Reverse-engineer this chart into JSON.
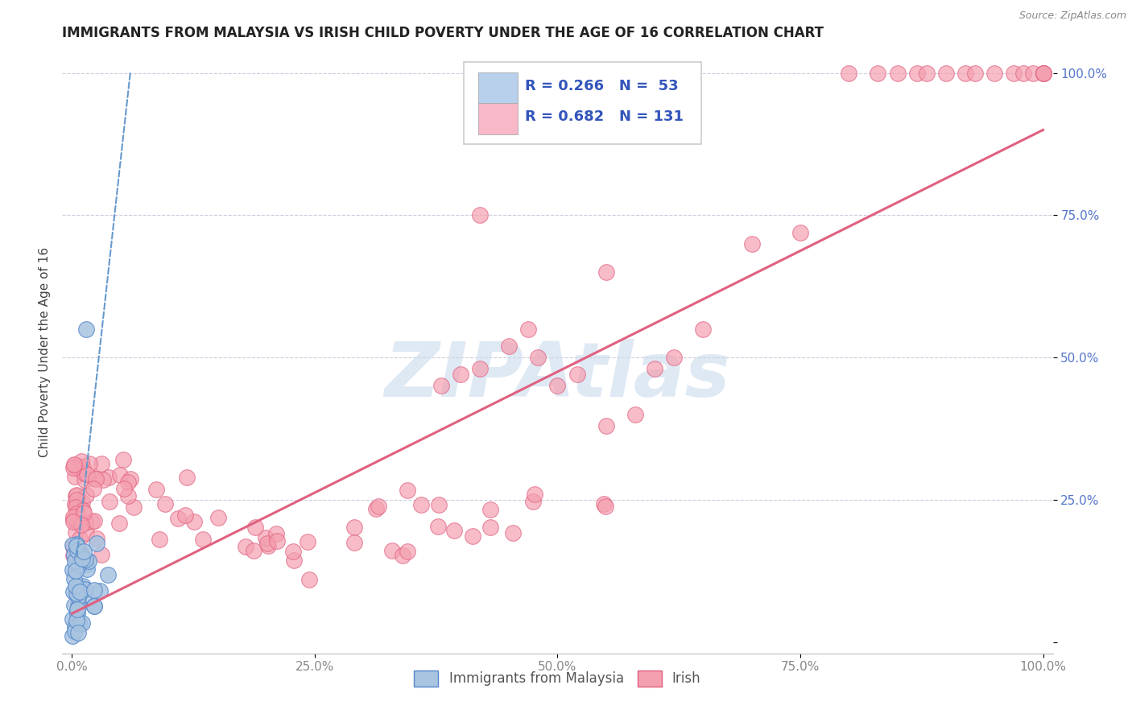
{
  "title": "IMMIGRANTS FROM MALAYSIA VS IRISH CHILD POVERTY UNDER THE AGE OF 16 CORRELATION CHART",
  "source": "Source: ZipAtlas.com",
  "ylabel": "Child Poverty Under the Age of 16",
  "watermark": "ZIPAtlas",
  "legend_blue_label": "Immigrants from Malaysia",
  "legend_pink_label": "Irish",
  "blue_R": 0.266,
  "blue_N": 53,
  "pink_R": 0.682,
  "pink_N": 131,
  "blue_color": "#A8C4E0",
  "pink_color": "#F4A0B0",
  "blue_edge": "#5588CC",
  "pink_edge": "#E06080",
  "title_color": "#222222",
  "grid_color": "#CCCCDD",
  "ytick_color": "#5577CC",
  "xtick_color": "#888888",
  "ylabel_color": "#444444",
  "legend_box_blue": "#B8D0EC",
  "legend_box_pink": "#F8B8C8",
  "legend_text_color": "#3355BB",
  "blue_line_color": "#6699CC",
  "pink_line_color": "#E06080"
}
